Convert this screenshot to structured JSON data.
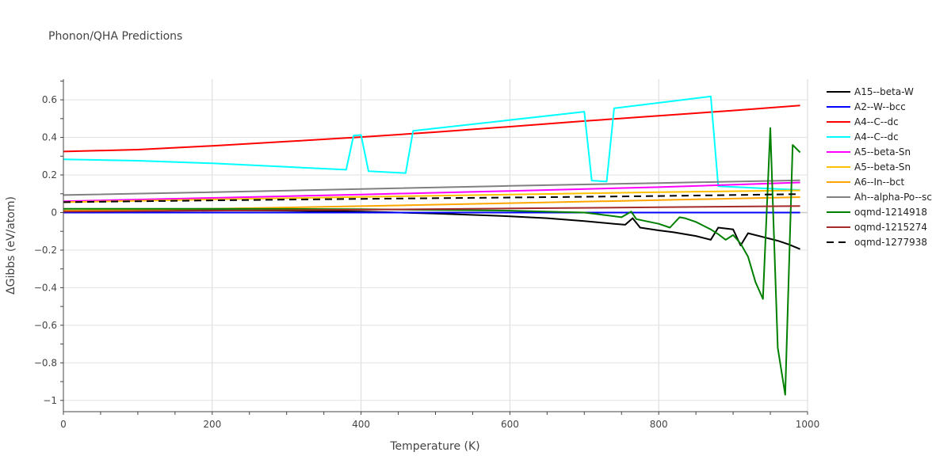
{
  "chart_data": {
    "type": "line",
    "title": "Phonon/QHA Predictions",
    "xlabel": "Temperature (K)",
    "ylabel": "ΔGibbs (eV/atom)",
    "xlim": [
      0,
      1000
    ],
    "ylim": [
      -1.06,
      0.71
    ],
    "xticks": [
      0,
      200,
      400,
      600,
      800,
      1000
    ],
    "yticks": [
      -1,
      -0.8,
      -0.6,
      -0.4,
      -0.2,
      0,
      0.2,
      0.4,
      0.6
    ],
    "ytick_labels": [
      "−1",
      "−0.8",
      "−0.6",
      "−0.4",
      "−0.2",
      "0",
      "0.2",
      "0.4",
      "0.6"
    ],
    "grid": true,
    "legend_position": "right",
    "series": [
      {
        "name": "A15--beta-W",
        "color": "#000000",
        "dash": "solid",
        "x": [
          0,
          100,
          200,
          300,
          400,
          500,
          600,
          650,
          700,
          740,
          755,
          765,
          775,
          800,
          820,
          850,
          870,
          880,
          890,
          900,
          910,
          920,
          940,
          960,
          975,
          990
        ],
        "y": [
          0.01,
          0.012,
          0.012,
          0.01,
          0.005,
          -0.005,
          -0.02,
          -0.03,
          -0.045,
          -0.06,
          -0.065,
          -0.03,
          -0.08,
          -0.095,
          -0.105,
          -0.125,
          -0.145,
          -0.08,
          -0.085,
          -0.09,
          -0.175,
          -0.11,
          -0.13,
          -0.15,
          -0.17,
          -0.195
        ]
      },
      {
        "name": "A2--W--bcc",
        "color": "#0000ff",
        "dash": "solid",
        "x": [
          0,
          990
        ],
        "y": [
          0,
          0
        ]
      },
      {
        "name": "A4--C--dc",
        "color": "#ff0000",
        "dash": "solid",
        "x": [
          0,
          100,
          200,
          300,
          400,
          500,
          600,
          700,
          800,
          900,
          990
        ],
        "y": [
          0.325,
          0.335,
          0.355,
          0.378,
          0.402,
          0.428,
          0.457,
          0.487,
          0.515,
          0.543,
          0.57
        ]
      },
      {
        "name": "A4--C--dc",
        "color": "#00ffff",
        "dash": "solid",
        "x": [
          0,
          100,
          200,
          380,
          390,
          400,
          410,
          460,
          470,
          700,
          710,
          730,
          740,
          870,
          880,
          990
        ],
        "y": [
          0.283,
          0.276,
          0.262,
          0.228,
          0.41,
          0.413,
          0.22,
          0.21,
          0.435,
          0.537,
          0.17,
          0.165,
          0.555,
          0.618,
          0.14,
          0.12
        ]
      },
      {
        "name": "A5--beta-Sn",
        "color": "#ff00ff",
        "dash": "solid",
        "x": [
          0,
          200,
          400,
          600,
          800,
          990
        ],
        "y": [
          0.06,
          0.078,
          0.096,
          0.115,
          0.135,
          0.16
        ]
      },
      {
        "name": "A5--beta-Sn",
        "color": "#ffc000",
        "dash": "solid",
        "x": [
          0,
          200,
          400,
          600,
          800,
          990
        ],
        "y": [
          0.055,
          0.07,
          0.083,
          0.096,
          0.108,
          0.118
        ]
      },
      {
        "name": "A6--In--bct",
        "color": "#ffa500",
        "dash": "solid",
        "x": [
          0,
          200,
          400,
          600,
          800,
          990
        ],
        "y": [
          0.01,
          0.02,
          0.034,
          0.05,
          0.066,
          0.082
        ]
      },
      {
        "name": "Ah--alpha-Po--sc",
        "color": "#808080",
        "dash": "solid",
        "x": [
          0,
          200,
          400,
          600,
          800,
          990
        ],
        "y": [
          0.093,
          0.108,
          0.125,
          0.142,
          0.157,
          0.172
        ]
      },
      {
        "name": "oqmd-1214918",
        "color": "#008000",
        "dash": "solid",
        "x": [
          0,
          200,
          400,
          600,
          700,
          720,
          750,
          763,
          770,
          800,
          815,
          828,
          835,
          850,
          870,
          880,
          890,
          900,
          910,
          920,
          930,
          940,
          950,
          960,
          970,
          980,
          990
        ],
        "y": [
          0.02,
          0.02,
          0.018,
          0.01,
          0,
          -0.01,
          -0.025,
          0.005,
          -0.035,
          -0.06,
          -0.08,
          -0.025,
          -0.03,
          -0.05,
          -0.09,
          -0.115,
          -0.145,
          -0.12,
          -0.165,
          -0.235,
          -0.37,
          -0.46,
          0.45,
          -0.72,
          -0.97,
          0.36,
          0.32
        ]
      },
      {
        "name": "oqmd-1215274",
        "color": "#a52a2a",
        "dash": "solid",
        "x": [
          0,
          200,
          400,
          600,
          800,
          990
        ],
        "y": [
          0.005,
          0.01,
          0.015,
          0.022,
          0.028,
          0.035
        ]
      },
      {
        "name": "oqmd-1277938",
        "color": "#000000",
        "dash": "dash",
        "x": [
          0,
          200,
          400,
          600,
          800,
          990
        ],
        "y": [
          0.055,
          0.065,
          0.073,
          0.08,
          0.088,
          0.098
        ]
      }
    ]
  }
}
